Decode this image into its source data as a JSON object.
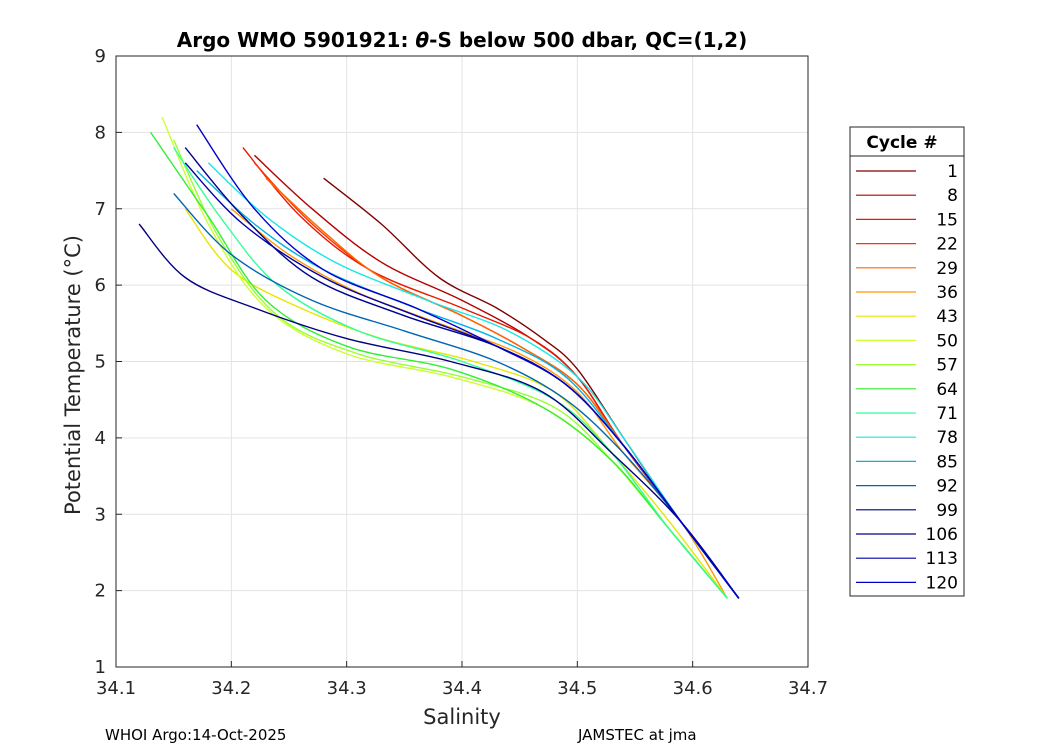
{
  "chart_data": {
    "type": "line",
    "title_prefix": "Argo WMO 5901921: ",
    "title_symbol": "θ",
    "title_suffix": "-S below 500 dbar,  QC=(1,2)",
    "xlabel": "Salinity",
    "ylabel": "Potential Temperature (°C)",
    "xlim": [
      34.1,
      34.7
    ],
    "ylim": [
      1,
      9
    ],
    "xticks": [
      "34.1",
      "34.2",
      "34.3",
      "34.4",
      "34.5",
      "34.6",
      "34.7"
    ],
    "yticks": [
      "1",
      "2",
      "3",
      "4",
      "5",
      "6",
      "7",
      "8",
      "9"
    ],
    "grid": true,
    "legend_title": "Cycle #",
    "legend_position": "right",
    "series": [
      {
        "name": "1",
        "color": "#800000",
        "x": [
          34.28,
          34.33,
          34.38,
          34.43,
          34.47,
          34.5,
          34.54,
          34.59,
          34.64
        ],
        "y": [
          7.4,
          6.8,
          6.1,
          5.7,
          5.3,
          4.9,
          4.0,
          2.9,
          1.9
        ]
      },
      {
        "name": "8",
        "color": "#b30000",
        "x": [
          34.22,
          34.27,
          34.33,
          34.4,
          34.46,
          34.5,
          34.54,
          34.59,
          34.64
        ],
        "y": [
          7.7,
          7.0,
          6.3,
          5.8,
          5.3,
          4.8,
          3.9,
          2.9,
          1.9
        ]
      },
      {
        "name": "15",
        "color": "#e61a00",
        "x": [
          34.21,
          34.26,
          34.32,
          34.4,
          34.46,
          34.5,
          34.54,
          34.59,
          34.64
        ],
        "y": [
          7.8,
          6.9,
          6.2,
          5.7,
          5.3,
          4.8,
          3.9,
          2.9,
          1.9
        ]
      },
      {
        "name": "22",
        "color": "#ff3300",
        "x": [
          34.22,
          34.27,
          34.33,
          34.4,
          34.45,
          34.5,
          34.54,
          34.59,
          34.64
        ],
        "y": [
          7.6,
          6.8,
          6.1,
          5.6,
          5.2,
          4.7,
          3.9,
          2.9,
          1.9
        ]
      },
      {
        "name": "29",
        "color": "#ff6600",
        "x": [
          34.23,
          34.28,
          34.33,
          34.4,
          34.45,
          34.5,
          34.54,
          34.59,
          34.64
        ],
        "y": [
          7.4,
          6.7,
          6.1,
          5.6,
          5.2,
          4.7,
          3.9,
          2.9,
          1.9
        ]
      },
      {
        "name": "36",
        "color": "#ff9900",
        "x": [
          34.2,
          34.25,
          34.31,
          34.38,
          34.45,
          34.5,
          34.54,
          34.59,
          34.63
        ],
        "y": [
          7.0,
          6.4,
          5.9,
          5.5,
          5.1,
          4.6,
          3.8,
          2.9,
          1.9
        ]
      },
      {
        "name": "43",
        "color": "#e6e600",
        "x": [
          34.16,
          34.2,
          34.26,
          34.33,
          34.41,
          34.48,
          34.53,
          34.58,
          34.63
        ],
        "y": [
          7.0,
          6.2,
          5.7,
          5.3,
          5.0,
          4.6,
          3.8,
          2.9,
          1.9
        ]
      },
      {
        "name": "50",
        "color": "#ccff33",
        "x": [
          34.14,
          34.18,
          34.23,
          34.3,
          34.39,
          34.47,
          34.53,
          34.58,
          34.63
        ],
        "y": [
          8.2,
          6.8,
          5.7,
          5.1,
          4.8,
          4.4,
          3.7,
          2.8,
          1.9
        ]
      },
      {
        "name": "57",
        "color": "#99ff33",
        "x": [
          34.15,
          34.19,
          34.24,
          34.31,
          34.4,
          34.48,
          34.53,
          34.58,
          34.63
        ],
        "y": [
          7.9,
          6.6,
          5.6,
          5.1,
          4.8,
          4.4,
          3.7,
          2.8,
          1.9
        ]
      },
      {
        "name": "64",
        "color": "#33ee33",
        "x": [
          34.13,
          34.18,
          34.23,
          34.3,
          34.39,
          34.47,
          34.53,
          34.58,
          34.63
        ],
        "y": [
          8.0,
          6.9,
          5.8,
          5.2,
          4.9,
          4.4,
          3.7,
          2.8,
          1.9
        ]
      },
      {
        "name": "71",
        "color": "#33ff99",
        "x": [
          34.15,
          34.19,
          34.24,
          34.31,
          34.4,
          34.48,
          34.53,
          34.58,
          34.63
        ],
        "y": [
          7.8,
          6.9,
          6.0,
          5.4,
          5.0,
          4.5,
          3.8,
          2.8,
          1.9
        ]
      },
      {
        "name": "78",
        "color": "#1ae6e6",
        "x": [
          34.18,
          34.23,
          34.29,
          34.37,
          34.44,
          34.5,
          34.54,
          34.59,
          34.64
        ],
        "y": [
          7.6,
          6.9,
          6.3,
          5.8,
          5.4,
          4.8,
          4.0,
          2.9,
          1.9
        ]
      },
      {
        "name": "85",
        "color": "#00b3e6",
        "x": [
          34.17,
          34.22,
          34.28,
          34.36,
          34.43,
          34.49,
          34.54,
          34.59,
          34.64
        ],
        "y": [
          7.5,
          6.8,
          6.2,
          5.7,
          5.3,
          4.8,
          3.9,
          2.9,
          1.9
        ]
      },
      {
        "name": "92",
        "color": "#0066b3",
        "x": [
          34.15,
          34.2,
          34.27,
          34.35,
          34.43,
          34.49,
          34.54,
          34.59,
          34.64
        ],
        "y": [
          7.2,
          6.4,
          5.8,
          5.4,
          5.0,
          4.5,
          3.8,
          2.9,
          1.9
        ]
      },
      {
        "name": "99",
        "color": "#000080",
        "x": [
          34.12,
          34.16,
          34.22,
          34.3,
          34.39,
          34.47,
          34.53,
          34.59,
          34.64
        ],
        "y": [
          6.8,
          6.1,
          5.7,
          5.3,
          5.0,
          4.6,
          3.8,
          2.9,
          1.9
        ]
      },
      {
        "name": "106",
        "color": "#00008c",
        "x": [
          34.16,
          34.21,
          34.27,
          34.35,
          34.43,
          34.49,
          34.54,
          34.59,
          34.64
        ],
        "y": [
          7.8,
          6.9,
          6.1,
          5.6,
          5.2,
          4.7,
          3.9,
          2.9,
          1.9
        ]
      },
      {
        "name": "113",
        "color": "#0000a6",
        "x": [
          34.16,
          34.21,
          34.28,
          34.36,
          34.43,
          34.49,
          34.54,
          34.59,
          34.64
        ],
        "y": [
          7.6,
          6.8,
          6.1,
          5.6,
          5.2,
          4.7,
          3.9,
          2.9,
          1.9
        ]
      },
      {
        "name": "120",
        "color": "#0000cc",
        "x": [
          34.17,
          34.22,
          34.28,
          34.36,
          34.43,
          34.49,
          34.54,
          34.59,
          34.64
        ],
        "y": [
          8.1,
          7.0,
          6.2,
          5.7,
          5.2,
          4.7,
          3.9,
          2.9,
          1.9
        ]
      }
    ]
  },
  "footer": {
    "left": "WHOI Argo:14-Oct-2025",
    "right": "JAMSTEC at jma"
  }
}
